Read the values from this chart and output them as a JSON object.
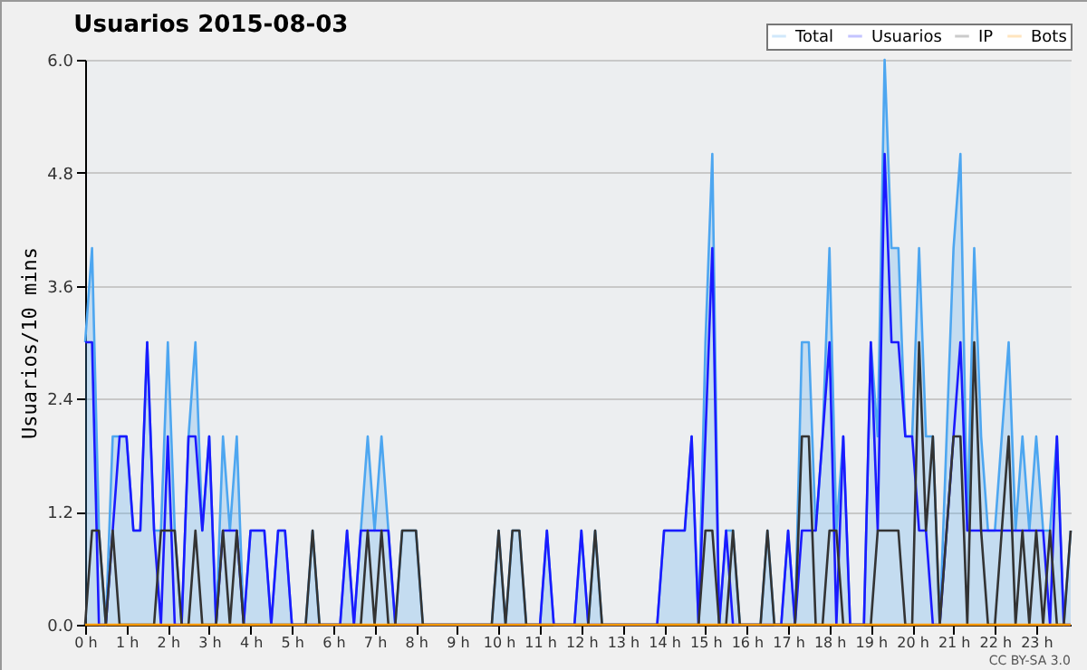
{
  "chart_data": {
    "type": "line",
    "title": "Usuarios  2015-08-03",
    "ylabel": "Usuarios/10 mins",
    "annotations": [
      "CC BY-SA 3.0"
    ],
    "x": [
      0,
      0.1667,
      0.3333,
      0.5,
      0.6667,
      0.8333,
      1,
      1.1667,
      1.3333,
      1.5,
      1.6667,
      1.8333,
      2,
      2.1667,
      2.3333,
      2.5,
      2.6667,
      2.8333,
      3,
      3.1667,
      3.3333,
      3.5,
      3.6667,
      3.8333,
      4,
      4.1667,
      4.3333,
      4.5,
      4.6667,
      4.8333,
      5,
      5.1667,
      5.3333,
      5.5,
      5.6667,
      5.8333,
      6,
      6.1667,
      6.3333,
      6.5,
      6.6667,
      6.8333,
      7,
      7.1667,
      7.3333,
      7.5,
      7.6667,
      7.8333,
      8,
      8.1667,
      8.3333,
      8.5,
      8.6667,
      8.8333,
      9,
      9.1667,
      9.3333,
      9.5,
      9.6667,
      9.8333,
      10,
      10.1667,
      10.3333,
      10.5,
      10.6667,
      10.8333,
      11,
      11.1667,
      11.3333,
      11.5,
      11.6667,
      11.8333,
      12,
      12.1667,
      12.3333,
      12.5,
      12.6667,
      12.8333,
      13,
      13.1667,
      13.3333,
      13.5,
      13.6667,
      13.8333,
      14,
      14.1667,
      14.3333,
      14.5,
      14.6667,
      14.8333,
      15,
      15.1667,
      15.3333,
      15.5,
      15.6667,
      15.8333,
      16,
      16.1667,
      16.3333,
      16.5,
      16.6667,
      16.8333,
      17,
      17.1667,
      17.3333,
      17.5,
      17.6667,
      17.8333,
      18,
      18.1667,
      18.3333,
      18.5,
      18.6667,
      18.8333,
      19,
      19.1667,
      19.3333,
      19.5,
      19.6667,
      19.8333,
      20,
      20.1667,
      20.3333,
      20.5,
      20.6667,
      20.8333,
      21,
      21.1667,
      21.3333,
      21.5,
      21.6667,
      21.8333,
      22,
      22.1667,
      22.3333,
      22.5,
      22.6667,
      22.8333,
      23,
      23.1667,
      23.3333,
      23.5,
      23.6667,
      23.8333
    ],
    "series": [
      {
        "name": "Total",
        "type": "area",
        "color": "#4da6f0",
        "values": [
          3,
          4,
          1,
          0,
          2,
          2,
          2,
          1,
          1,
          3,
          1,
          1,
          3,
          1,
          0,
          2,
          3,
          1,
          2,
          0,
          2,
          1,
          2,
          0,
          1,
          1,
          1,
          0,
          1,
          1,
          0,
          0,
          0,
          1,
          0,
          0,
          0,
          0,
          1,
          0,
          1,
          2,
          1,
          2,
          1,
          0,
          1,
          1,
          1,
          0,
          0,
          0,
          0,
          0,
          0,
          0,
          0,
          0,
          0,
          0,
          1,
          0,
          1,
          1,
          0,
          0,
          0,
          1,
          0,
          0,
          0,
          0,
          1,
          0,
          1,
          0,
          0,
          0,
          0,
          0,
          0,
          0,
          0,
          0,
          1,
          1,
          1,
          1,
          2,
          0,
          3,
          5,
          0,
          1,
          1,
          0,
          0,
          0,
          0,
          1,
          0,
          0,
          1,
          0,
          3,
          3,
          1,
          2,
          4,
          1,
          2,
          0,
          0,
          0,
          3,
          2,
          6,
          4,
          4,
          2,
          2,
          4,
          2,
          2,
          0,
          2,
          4,
          5,
          1,
          4,
          2,
          1,
          1,
          2,
          3,
          1,
          2,
          1,
          2,
          1,
          1,
          2,
          0,
          1
        ]
      },
      {
        "name": "Usuarios",
        "type": "line",
        "color": "#1a1aff",
        "values": [
          3,
          3,
          0,
          0,
          1,
          2,
          2,
          1,
          1,
          3,
          1,
          0,
          2,
          0,
          0,
          2,
          2,
          1,
          2,
          0,
          1,
          1,
          1,
          0,
          1,
          1,
          1,
          0,
          1,
          1,
          0,
          0,
          0,
          0,
          0,
          0,
          0,
          0,
          1,
          0,
          1,
          1,
          1,
          1,
          1,
          0,
          0,
          0,
          0,
          0,
          0,
          0,
          0,
          0,
          0,
          0,
          0,
          0,
          0,
          0,
          0,
          0,
          0,
          0,
          0,
          0,
          0,
          1,
          0,
          0,
          0,
          0,
          1,
          0,
          0,
          0,
          0,
          0,
          0,
          0,
          0,
          0,
          0,
          0,
          1,
          1,
          1,
          1,
          2,
          0,
          2,
          4,
          0,
          1,
          0,
          0,
          0,
          0,
          0,
          0,
          0,
          0,
          1,
          0,
          1,
          1,
          1,
          2,
          3,
          0,
          2,
          0,
          0,
          0,
          3,
          1,
          5,
          3,
          3,
          2,
          2,
          1,
          1,
          0,
          0,
          1,
          2,
          3,
          1,
          1,
          1,
          1,
          1,
          1,
          1,
          1,
          1,
          1,
          1,
          1,
          0,
          2,
          0,
          0
        ]
      },
      {
        "name": "IP",
        "type": "line",
        "color": "#333333",
        "values": [
          0,
          1,
          1,
          0,
          1,
          0,
          0,
          0,
          0,
          0,
          0,
          1,
          1,
          1,
          0,
          0,
          1,
          0,
          0,
          0,
          1,
          0,
          1,
          0,
          0,
          0,
          0,
          0,
          0,
          0,
          0,
          0,
          0,
          1,
          0,
          0,
          0,
          0,
          0,
          0,
          0,
          1,
          0,
          1,
          0,
          0,
          1,
          1,
          1,
          0,
          0,
          0,
          0,
          0,
          0,
          0,
          0,
          0,
          0,
          0,
          1,
          0,
          1,
          1,
          0,
          0,
          0,
          0,
          0,
          0,
          0,
          0,
          0,
          0,
          1,
          0,
          0,
          0,
          0,
          0,
          0,
          0,
          0,
          0,
          0,
          0,
          0,
          0,
          0,
          0,
          1,
          1,
          0,
          0,
          1,
          0,
          0,
          0,
          0,
          1,
          0,
          0,
          0,
          0,
          2,
          2,
          0,
          0,
          1,
          1,
          0,
          0,
          0,
          0,
          0,
          1,
          1,
          1,
          1,
          0,
          0,
          3,
          1,
          2,
          0,
          1,
          2,
          2,
          0,
          3,
          1,
          0,
          0,
          1,
          2,
          0,
          1,
          0,
          1,
          0,
          1,
          0,
          0,
          1
        ]
      },
      {
        "name": "Bots",
        "type": "line",
        "color": "#ff9900",
        "values": [
          0,
          0,
          0,
          0,
          0,
          0,
          0,
          0,
          0,
          0,
          0,
          0,
          0,
          0,
          0,
          0,
          0,
          0,
          0,
          0,
          0,
          0,
          0,
          0,
          0,
          0,
          0,
          0,
          0,
          0,
          0,
          0,
          0,
          0,
          0,
          0,
          0,
          0,
          0,
          0,
          0,
          0,
          0,
          0,
          0,
          0,
          0,
          0,
          0,
          0,
          0,
          0,
          0,
          0,
          0,
          0,
          0,
          0,
          0,
          0,
          0,
          0,
          0,
          0,
          0,
          0,
          0,
          0,
          0,
          0,
          0,
          0,
          0,
          0,
          0,
          0,
          0,
          0,
          0,
          0,
          0,
          0,
          0,
          0,
          0,
          0,
          0,
          0,
          0,
          0,
          0,
          0,
          0,
          0,
          0,
          0,
          0,
          0,
          0,
          0,
          0,
          0,
          0,
          0,
          0,
          0,
          0,
          0,
          0,
          0,
          0,
          0,
          0,
          0,
          0,
          0,
          0,
          0,
          0,
          0,
          0,
          0,
          0,
          0,
          0,
          0,
          0,
          0,
          0,
          0,
          0,
          0,
          0,
          0,
          0,
          0,
          0,
          0,
          0,
          0,
          0,
          0,
          0,
          0
        ]
      }
    ],
    "xlim": [
      0,
      23.8333
    ],
    "xticks": [
      {
        "value": 0,
        "label": "0 h"
      },
      {
        "value": 1,
        "label": "1 h"
      },
      {
        "value": 2,
        "label": "2 h"
      },
      {
        "value": 3,
        "label": "3 h"
      },
      {
        "value": 4,
        "label": "4 h"
      },
      {
        "value": 5,
        "label": "5 h"
      },
      {
        "value": 6,
        "label": "6 h"
      },
      {
        "value": 7,
        "label": "7 h"
      },
      {
        "value": 8,
        "label": "8 h"
      },
      {
        "value": 9,
        "label": "9 h"
      },
      {
        "value": 10,
        "label": "10 h"
      },
      {
        "value": 11,
        "label": "11 h"
      },
      {
        "value": 12,
        "label": "12 h"
      },
      {
        "value": 13,
        "label": "13 h"
      },
      {
        "value": 14,
        "label": "14 h"
      },
      {
        "value": 15,
        "label": "15 h"
      },
      {
        "value": 16,
        "label": "16 h"
      },
      {
        "value": 17,
        "label": "17 h"
      },
      {
        "value": 18,
        "label": "18 h"
      },
      {
        "value": 19,
        "label": "19 h"
      },
      {
        "value": 20,
        "label": "20 h"
      },
      {
        "value": 21,
        "label": "21 h"
      },
      {
        "value": 22,
        "label": "22 h"
      },
      {
        "value": 23,
        "label": "23 h"
      }
    ],
    "ylim": [
      0,
      6
    ],
    "yticks": [
      {
        "value": 0,
        "label": "0.0"
      },
      {
        "value": 1.2,
        "label": "1.2"
      },
      {
        "value": 2.4,
        "label": "2.4"
      },
      {
        "value": 3.6,
        "label": "3.6"
      },
      {
        "value": 4.8,
        "label": "4.8"
      },
      {
        "value": 6,
        "label": "6.0"
      }
    ],
    "grid": "y",
    "legend": "top right",
    "marker": "none"
  }
}
